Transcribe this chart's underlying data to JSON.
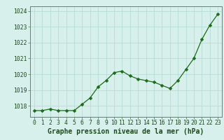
{
  "x": [
    0,
    1,
    2,
    3,
    4,
    5,
    6,
    7,
    8,
    9,
    10,
    11,
    12,
    13,
    14,
    15,
    16,
    17,
    18,
    19,
    20,
    21,
    22,
    23
  ],
  "y": [
    1017.7,
    1017.7,
    1017.8,
    1017.7,
    1017.7,
    1017.7,
    1018.1,
    1018.5,
    1019.2,
    1019.6,
    1020.1,
    1020.2,
    1019.9,
    1019.7,
    1019.6,
    1019.5,
    1019.3,
    1019.1,
    1019.6,
    1020.3,
    1021.0,
    1022.2,
    1023.1,
    1023.8
  ],
  "line_color": "#1a6b1a",
  "marker": "D",
  "marker_size": 2.5,
  "bg_color": "#d8f0ec",
  "grid_color": "#b8dcd8",
  "title": "Graphe pression niveau de la mer (hPa)",
  "title_color": "#1a4a1a",
  "ylim": [
    1017.3,
    1024.3
  ],
  "yticks": [
    1018,
    1019,
    1020,
    1021,
    1022,
    1023,
    1024
  ],
  "xticks": [
    0,
    1,
    2,
    3,
    4,
    5,
    6,
    7,
    8,
    9,
    10,
    11,
    12,
    13,
    14,
    15,
    16,
    17,
    18,
    19,
    20,
    21,
    22,
    23
  ],
  "tick_color": "#1a4a1a",
  "tick_fontsize": 5.8,
  "title_fontsize": 7.0,
  "spine_color": "#5a8a5a"
}
